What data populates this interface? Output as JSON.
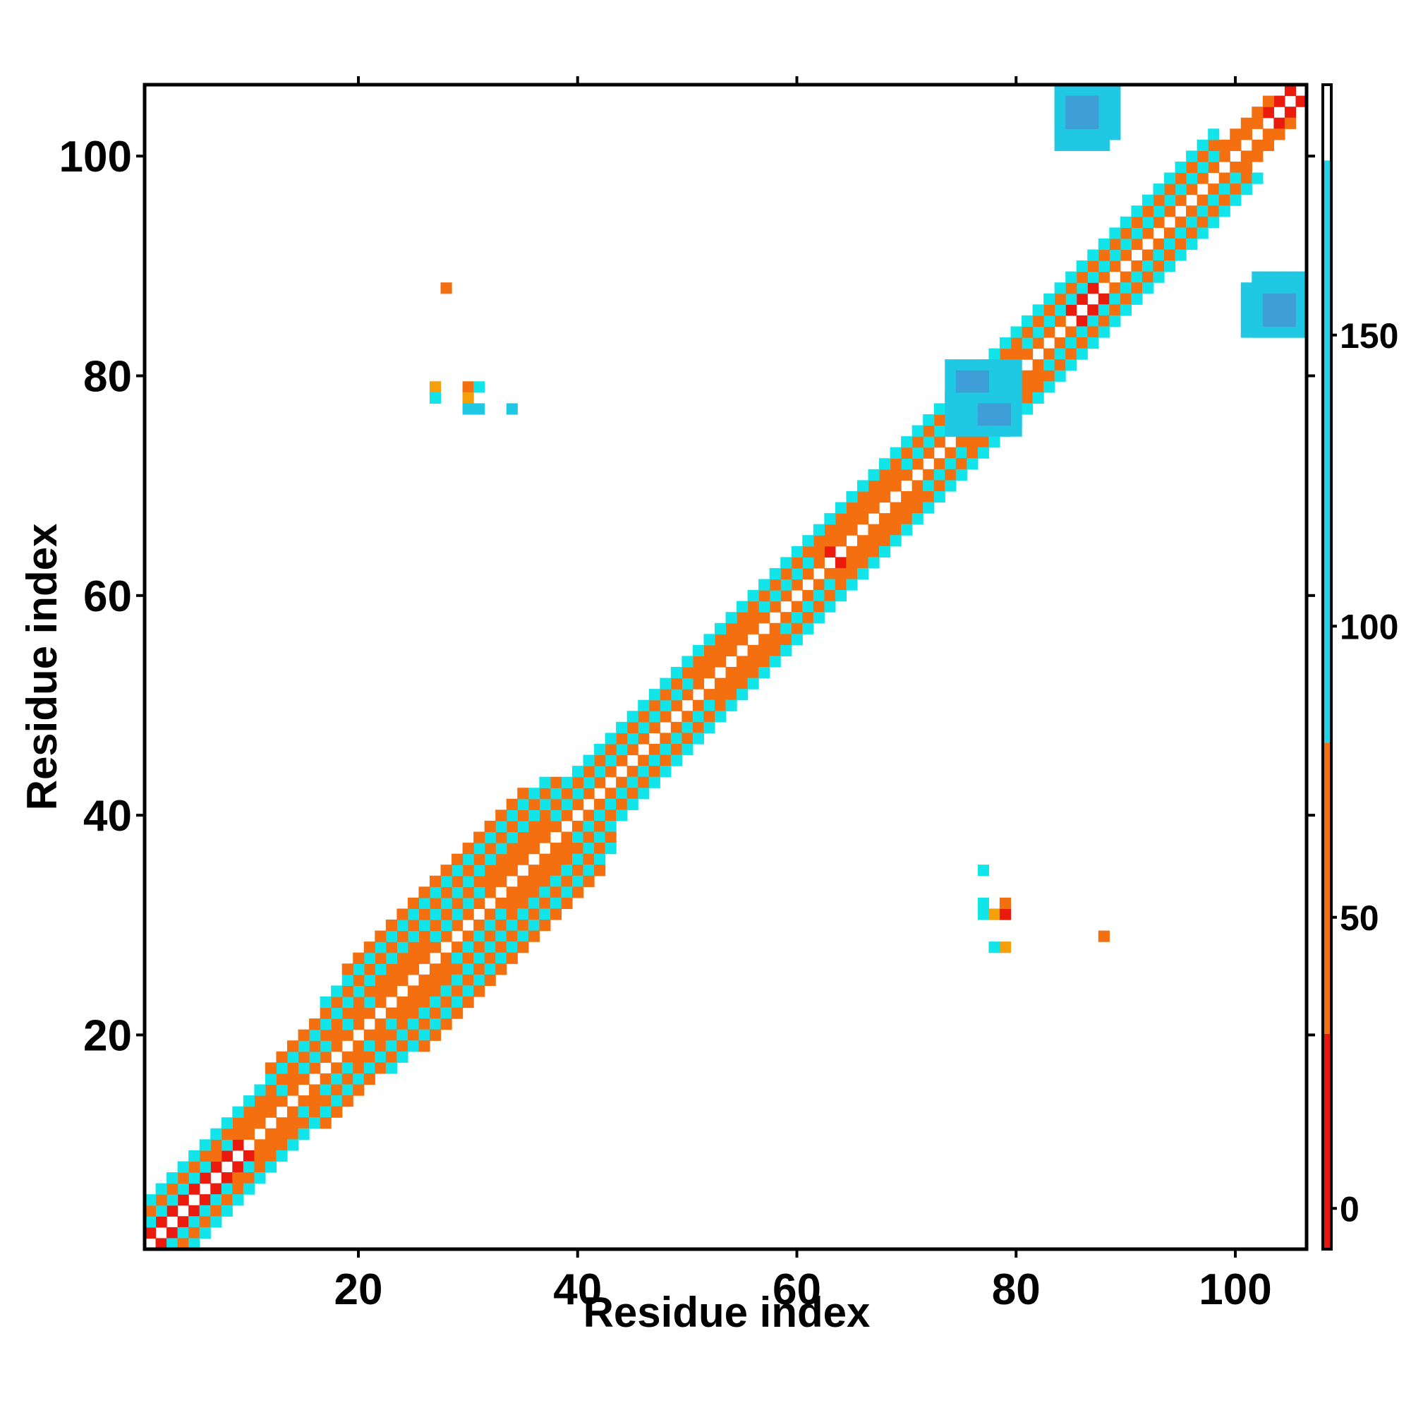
{
  "chart_data": {
    "type": "heatmap",
    "title": "",
    "xlabel": "Residue index",
    "ylabel": "Residue index",
    "xlim": [
      0.5,
      106.5
    ],
    "ylim": [
      0.5,
      106.5
    ],
    "x_ticks": [
      20,
      40,
      60,
      80,
      100
    ],
    "y_ticks": [
      20,
      40,
      60,
      80,
      100
    ],
    "colorbar": {
      "ticks": [
        0,
        50,
        100,
        150
      ],
      "range": [
        -7,
        193
      ],
      "bands": [
        {
          "from": -7,
          "to": 30,
          "color": "#e8160c"
        },
        {
          "from": 30,
          "to": 80,
          "color": "#f46f10"
        },
        {
          "from": 80,
          "to": 180,
          "color": "#22d3e8"
        },
        {
          "from": 180,
          "to": 193,
          "color": "#ffffff"
        }
      ]
    },
    "palette": {
      "red": "#ea1a0d",
      "orange": "#f46f10",
      "amber": "#f59f0a",
      "cyan": "#12e5ea",
      "sky": "#1fc9e4",
      "steel": "#3d9fd6"
    },
    "contact_bands": [
      {
        "offset": 1,
        "pattern": "RRRRRRRRROOOOOOOOOOOOOOOOOOOOOOOOOOOOOOOOOOOOOOOOOOOOOOOOOOOOOROOOOOOOOOOOOOOOOOOOOORRROOOOOOOOOOOOOOORRR"
      },
      {
        "offset": 2,
        "pattern": "ccccccOcOOOOcOcccOcOcOOOOOcccccOOOOOOcccccccccccccOOOOOOcccccOOOOOOOOccccOOOOOOOccccccccccccccccccOOOOO"
      },
      {
        "offset": 3,
        "pattern": "OOOOOOOOOOOOOOOOOOOOOOOOOOOOOOOOOOOOOOOOOOOOOOOOOOOOOOOOOOOOOOOOOOOOOOOOOOOOOOOOOOOOOOOOOOOOOOOOOO"
      },
      {
        "offset": 4,
        "pattern": "cccccccccccccccccccccccccccccccccccccccccccccccccccccccccccccccccccccccccccccccccccccccccccccccccc"
      },
      {
        "offset": 5,
        "pattern": "...........OOOOOOOOOOOOOOOOOOOOOOOOOOO..............................................................."
      },
      {
        "offset": 6,
        "pattern": "................ccccccccccccccccccccc.................................................................."
      },
      {
        "offset": 7,
        "pattern": "..................OOOOOOOOOOOOOOOOO................................................................"
      }
    ],
    "contact_cells": [
      {
        "x": 28,
        "y": 88,
        "v": "O"
      },
      {
        "x": 27,
        "y": 79,
        "v": "A"
      },
      {
        "x": 27,
        "y": 78,
        "v": "c"
      },
      {
        "x": 30,
        "y": 79,
        "v": "O"
      },
      {
        "x": 31,
        "y": 79,
        "v": "c"
      },
      {
        "x": 30,
        "y": 78,
        "v": "A"
      },
      {
        "x": 30,
        "y": 77,
        "v": "s"
      },
      {
        "x": 31,
        "y": 77,
        "v": "s"
      },
      {
        "x": 34,
        "y": 77,
        "v": "s"
      },
      {
        "x": 77,
        "y": 35,
        "v": "c"
      },
      {
        "x": 77,
        "y": 32,
        "v": "c"
      },
      {
        "x": 77,
        "y": 31,
        "v": "c"
      },
      {
        "x": 78,
        "y": 31,
        "v": "A"
      },
      {
        "x": 79,
        "y": 31,
        "v": "R"
      },
      {
        "x": 79,
        "y": 32,
        "v": "O"
      },
      {
        "x": 78,
        "y": 28,
        "v": "c"
      },
      {
        "x": 79,
        "y": 28,
        "v": "A"
      },
      {
        "x": 88,
        "y": 29,
        "v": "O"
      }
    ],
    "contact_patches": [
      {
        "x0": 84,
        "x1": 88,
        "y0": 101,
        "y1": 106,
        "v": "s"
      },
      {
        "x0": 85,
        "x1": 87,
        "y0": 103,
        "y1": 105,
        "v": "t"
      },
      {
        "x0": 102,
        "x1": 106,
        "y0": 84,
        "y1": 89,
        "v": "s"
      },
      {
        "x0": 103,
        "x1": 105,
        "y0": 85,
        "y1": 87,
        "v": "t"
      },
      {
        "x0": 74,
        "x1": 80,
        "y0": 75,
        "y1": 81,
        "v": "s"
      },
      {
        "x0": 75,
        "x1": 77,
        "y0": 79,
        "y1": 80,
        "v": "t"
      },
      {
        "x0": 77,
        "x1": 79,
        "y0": 76,
        "y1": 77,
        "v": "t"
      }
    ]
  }
}
